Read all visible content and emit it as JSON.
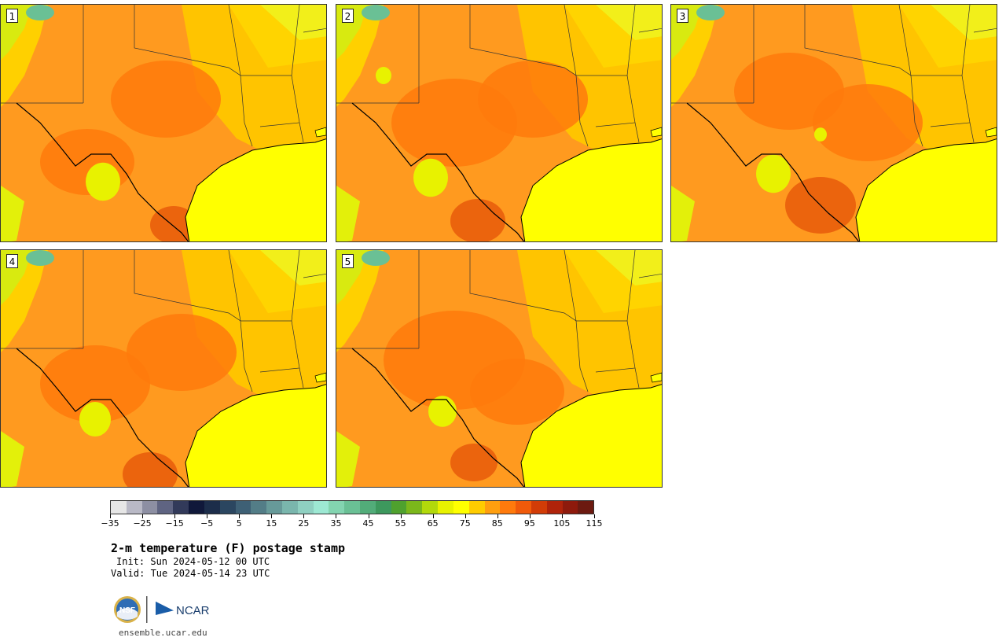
{
  "panels": [
    {
      "label": "1"
    },
    {
      "label": "2"
    },
    {
      "label": "3"
    },
    {
      "label": "4"
    },
    {
      "label": "5"
    }
  ],
  "colorbar": {
    "colors": [
      "#e6e6e6",
      "#b9b9c6",
      "#8d8fa3",
      "#5f6482",
      "#323a5a",
      "#10183a",
      "#1c2d4a",
      "#2b4660",
      "#3e6075",
      "#537d87",
      "#679a99",
      "#7ab6ad",
      "#8fd0c1",
      "#9de8d3",
      "#83d4b0",
      "#6ac095",
      "#52ac79",
      "#3d985d",
      "#4fa12e",
      "#7bb71b",
      "#b2d90b",
      "#e8f200",
      "#ffff00",
      "#ffcc00",
      "#ff9f0f",
      "#ff7a0c",
      "#f05a0a",
      "#d23c07",
      "#b0230a",
      "#8e1a0c",
      "#6c1a10"
    ],
    "tick_labels": [
      "−35",
      "−25",
      "−15",
      "−5",
      "5",
      "15",
      "25",
      "35",
      "45",
      "55",
      "65",
      "75",
      "85",
      "95",
      "105",
      "115"
    ]
  },
  "title": "2-m temperature (F) postage stamp",
  "init": "Init: Sun 2024-05-12 00 UTC",
  "valid": "Valid: Tue 2024-05-14 23 UTC",
  "logos": {
    "nsf": "NSF",
    "ncar": "NCAR"
  },
  "site": "ensemble.ucar.edu"
}
